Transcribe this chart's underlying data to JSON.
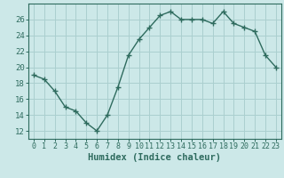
{
  "x": [
    0,
    1,
    2,
    3,
    4,
    5,
    6,
    7,
    8,
    9,
    10,
    11,
    12,
    13,
    14,
    15,
    16,
    17,
    18,
    19,
    20,
    21,
    22,
    23
  ],
  "y": [
    19.0,
    18.5,
    17.0,
    15.0,
    14.5,
    13.0,
    12.0,
    14.0,
    17.5,
    21.5,
    23.5,
    25.0,
    26.5,
    27.0,
    26.0,
    26.0,
    26.0,
    25.5,
    27.0,
    25.5,
    25.0,
    24.5,
    21.5,
    20.0
  ],
  "line_color": "#2e6b5e",
  "marker": "+",
  "marker_size": 4,
  "line_width": 1.0,
  "bg_color": "#cce8e8",
  "grid_color": "#aacfcf",
  "xlabel": "Humidex (Indice chaleur)",
  "xlabel_fontsize": 7.5,
  "yticks": [
    12,
    14,
    16,
    18,
    20,
    22,
    24,
    26
  ],
  "ylim": [
    11.0,
    28.0
  ],
  "xlim": [
    -0.5,
    23.5
  ],
  "xtick_fontsize": 6.0,
  "ytick_fontsize": 6.5,
  "tick_color": "#2e6b5e",
  "axis_color": "#2e6b5e",
  "marker_edge_width": 1.0
}
